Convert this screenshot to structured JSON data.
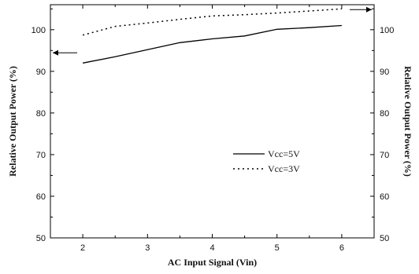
{
  "chart_data": {
    "type": "line",
    "title": "",
    "xlabel": "AC Input Signal (Vin)",
    "ylabel_left": "Relative Output Power (%)",
    "ylabel_right": "Relative Output Power (%)",
    "xlim": [
      1.5,
      6.5
    ],
    "ylim": [
      50,
      106
    ],
    "x_ticks": [
      2,
      3,
      4,
      5,
      6
    ],
    "y_ticks": [
      50,
      60,
      70,
      80,
      90,
      100
    ],
    "grid": false,
    "legend_position": "center-right",
    "series": [
      {
        "name": "Vcc=5V",
        "line_style": "solid",
        "color": "#000000",
        "axis": "left",
        "x": [
          2,
          2.5,
          3,
          3.5,
          4,
          4.5,
          5,
          5.5,
          6
        ],
        "y": [
          92.0,
          93.5,
          95.2,
          96.9,
          97.8,
          98.5,
          100.1,
          100.5,
          101.0
        ]
      },
      {
        "name": "Vcc=3V",
        "line_style": "dotted",
        "color": "#000000",
        "axis": "right",
        "x": [
          2,
          2.5,
          3,
          3.5,
          4,
          4.5,
          5,
          5.5,
          6
        ],
        "y": [
          98.7,
          100.8,
          101.6,
          102.5,
          103.3,
          103.6,
          104.0,
          104.5,
          105.0
        ]
      }
    ]
  }
}
